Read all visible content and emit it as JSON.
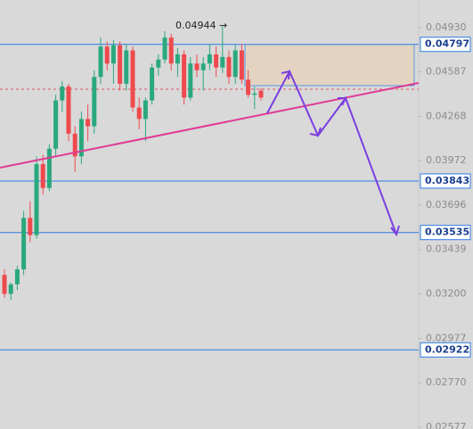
{
  "chart_data": {
    "type": "candlestick",
    "log_scale": true,
    "ylim": [
      0.0257,
      0.05155
    ],
    "yticks": [
      {
        "value": 0.0493,
        "label": "0.04930"
      },
      {
        "value": 0.04587,
        "label": "0.04587"
      },
      {
        "value": 0.04268,
        "label": "0.04268"
      },
      {
        "value": 0.03972,
        "label": "0.03972"
      },
      {
        "value": 0.03696,
        "label": "0.03696"
      },
      {
        "value": 0.03439,
        "label": "0.03439"
      },
      {
        "value": 0.032,
        "label": "0.03200"
      },
      {
        "value": 0.02977,
        "label": "0.02977"
      },
      {
        "value": 0.0277,
        "label": "0.02770"
      },
      {
        "value": 0.02577,
        "label": "0.02577"
      }
    ],
    "levels": [
      0.04797,
      0.03843,
      0.03535,
      0.02922
    ],
    "level_color": "#2d7be5",
    "up_color": "#2aa87d",
    "down_color": "#ee4a4e",
    "annotation": "0.04944 →",
    "open": [
      0.033,
      0.032,
      0.0325,
      0.0333,
      0.0362,
      0.0352,
      0.0395,
      0.038,
      0.0405,
      0.0438,
      0.0448,
      0.0415,
      0.04,
      0.0425,
      0.042,
      0.0455,
      0.0478,
      0.0465,
      0.0479,
      0.045,
      0.0475,
      0.0433,
      0.0425,
      0.0438,
      0.0462,
      0.0468,
      0.0485,
      0.0465,
      0.0472,
      0.044,
      0.0465,
      0.046,
      0.0465,
      0.0472,
      0.0462,
      0.047,
      0.0455,
      0.0475,
      0.0453,
      0.0442,
      0.0445
    ],
    "high": [
      0.0333,
      0.0326,
      0.0335,
      0.0366,
      0.0372,
      0.04,
      0.0401,
      0.0408,
      0.0442,
      0.0452,
      0.045,
      0.042,
      0.043,
      0.0435,
      0.046,
      0.0485,
      0.0482,
      0.0483,
      0.0482,
      0.048,
      0.0478,
      0.044,
      0.044,
      0.0465,
      0.0472,
      0.049,
      0.0488,
      0.0477,
      0.0475,
      0.047,
      0.0472,
      0.047,
      0.048,
      0.0478,
      0.04944,
      0.0475,
      0.048,
      0.048,
      0.046,
      0.0448,
      0.0447
    ],
    "low": [
      0.0318,
      0.0317,
      0.0322,
      0.033,
      0.0348,
      0.035,
      0.0376,
      0.0378,
      0.04,
      0.043,
      0.041,
      0.039,
      0.0395,
      0.041,
      0.0415,
      0.045,
      0.046,
      0.045,
      0.0445,
      0.0445,
      0.043,
      0.0418,
      0.041,
      0.0435,
      0.0456,
      0.0465,
      0.046,
      0.0455,
      0.0435,
      0.0438,
      0.0455,
      0.0445,
      0.046,
      0.0455,
      0.0458,
      0.045,
      0.045,
      0.045,
      0.044,
      0.0432,
      0.0438
    ],
    "close": [
      0.032,
      0.0325,
      0.0333,
      0.0362,
      0.0352,
      0.0395,
      0.038,
      0.0405,
      0.0438,
      0.0448,
      0.0415,
      0.04,
      0.0425,
      0.042,
      0.0455,
      0.0478,
      0.0465,
      0.0479,
      0.045,
      0.0475,
      0.0433,
      0.0425,
      0.0438,
      0.0462,
      0.0468,
      0.0485,
      0.0465,
      0.0472,
      0.044,
      0.0465,
      0.046,
      0.0465,
      0.0472,
      0.0462,
      0.047,
      0.0455,
      0.0475,
      0.0453,
      0.0442,
      0.0443,
      0.044
    ]
  }
}
